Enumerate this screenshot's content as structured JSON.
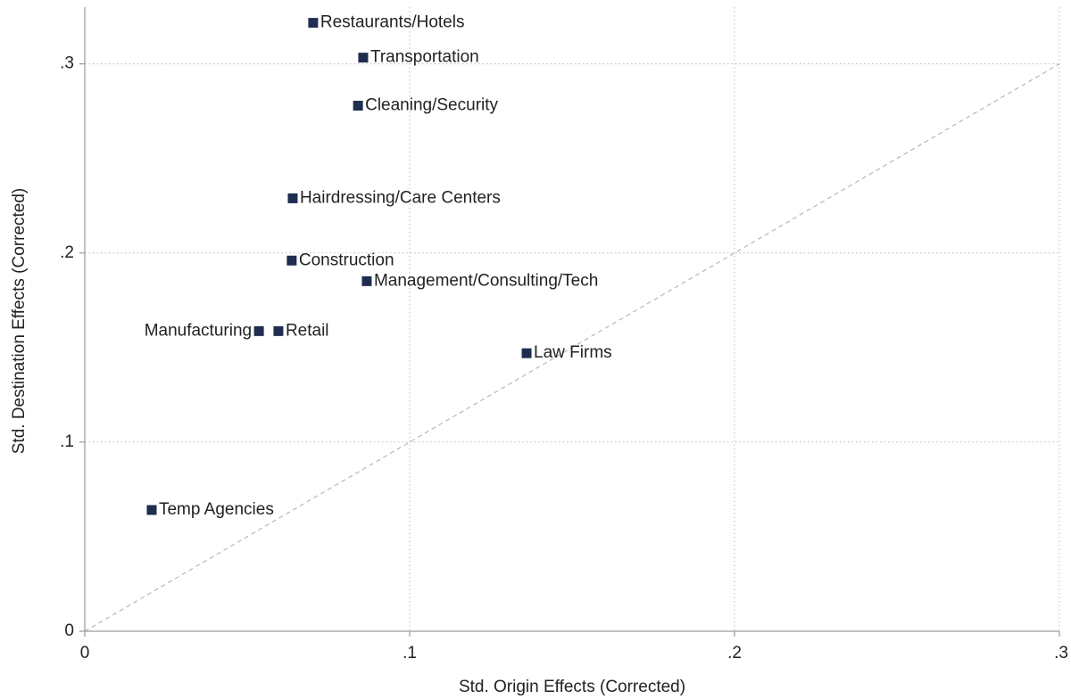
{
  "chart_data": {
    "type": "scatter",
    "x_label": "Std. Origin Effects (Corrected)",
    "y_label": "Std. Destination Effects (Corrected)",
    "point_labels": [
      "Restaurants/Hotels",
      "Transportation",
      "Cleaning/Security",
      "Hairdressing/Care Centers",
      "Construction",
      "Management/Consulting/Tech",
      "Manufacturing",
      "Retail",
      "Law Firms",
      "Temp Agencies"
    ],
    "label_positions": [
      "right",
      "right",
      "right",
      "right",
      "right",
      "right",
      "left",
      "right",
      "right",
      "right"
    ],
    "x": [
      0.0703,
      0.0857,
      0.0841,
      0.064,
      0.0637,
      0.0868,
      0.0536,
      0.0596,
      0.136,
      0.0206
    ],
    "values": [
      0.3217,
      0.3033,
      0.2779,
      0.2289,
      0.196,
      0.1851,
      0.1587,
      0.1587,
      0.147,
      0.0641
    ],
    "color": "#1f2d50",
    "xlim": [
      0,
      0.3
    ],
    "ylim": [
      0,
      0.33
    ],
    "xticks": [
      0,
      {
        "value": 0.1,
        "label": ".1"
      },
      {
        "value": 0.2,
        "label": ".2"
      },
      {
        "value": 0.3,
        "label": ".3"
      }
    ],
    "yticks": [
      0,
      {
        "value": 0.1,
        "label": ".1"
      },
      {
        "value": 0.2,
        "label": ".2"
      },
      {
        "value": 0.3,
        "label": ".3"
      }
    ],
    "grid": true,
    "diagonal": true
  }
}
